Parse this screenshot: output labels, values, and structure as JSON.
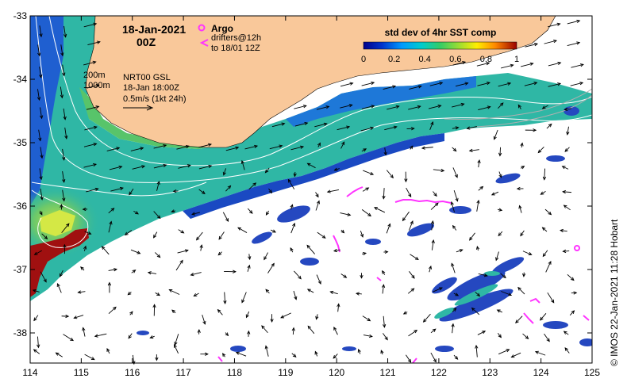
{
  "header": {
    "date": "18-Jan-2021",
    "time": "00Z"
  },
  "legend_argo": {
    "argo_label": "Argo",
    "drifters_line1": "drifters@12h",
    "drifters_line2": "to 18/01 12Z"
  },
  "colorbar": {
    "title": "std dev of 4hr SST comp",
    "ticks": [
      "0",
      "0.2",
      "0.4",
      "0.6",
      "0.8",
      "1"
    ]
  },
  "annotations": {
    "contour_200": "200m",
    "contour_1000": "1000m",
    "product": "NRT00 GSL",
    "product_time": "18-Jan 18:00Z",
    "vector_scale": "0.5m/s (1kt 24h)"
  },
  "axes": {
    "longitudes": [
      "114",
      "115",
      "116",
      "117",
      "118",
      "119",
      "120",
      "121",
      "122",
      "123",
      "124",
      "125"
    ],
    "latitudes": [
      "-33",
      "-34",
      "-35",
      "-36",
      "-37",
      "-38"
    ]
  },
  "credit": "© IMOS 22-Jan-2021 11:28 Hobart",
  "colors": {
    "land": "#f9c89a",
    "arrow": "#000000",
    "argo": "#ff33ff",
    "contour": "#ffffff"
  }
}
